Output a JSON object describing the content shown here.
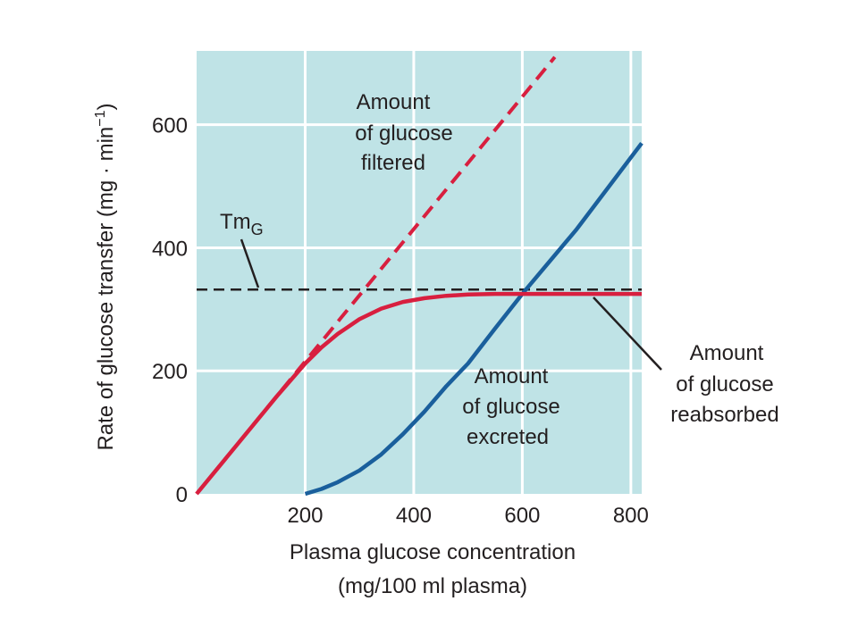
{
  "chart_data": {
    "type": "line",
    "title": "",
    "xlabel_line1": "Plasma glucose concentration",
    "xlabel_line2": "(mg/100 ml plasma)",
    "ylabel_text": "Rate of glucose transfer (mg · min",
    "ylabel_sup": "−1",
    "ylabel_close": ")",
    "xlim": [
      0,
      820
    ],
    "ylim": [
      0,
      720
    ],
    "grid": true,
    "x_ticks": [
      200,
      400,
      600,
      800
    ],
    "y_ticks": [
      0,
      200,
      400,
      600
    ],
    "colors": {
      "background": "#bfe3e6",
      "grid": "#ffffff",
      "filtered": "#d81f3f",
      "reabsorbed": "#d81f3f",
      "excreted": "#1a5f9c",
      "tm": "#231f20"
    },
    "series": [
      {
        "key": "filtered",
        "style": "dashed",
        "x": [
          0,
          660
        ],
        "y": [
          0,
          710
        ]
      },
      {
        "key": "reabsorbed",
        "style": "solid",
        "x": [
          0,
          150,
          200,
          230,
          260,
          300,
          340,
          380,
          420,
          460,
          500,
          550,
          600,
          700,
          820
        ],
        "y": [
          0,
          161,
          212,
          238,
          260,
          284,
          301,
          312,
          318,
          322,
          324,
          325,
          325,
          325,
          325
        ]
      },
      {
        "key": "excreted",
        "style": "solid",
        "x": [
          200,
          230,
          260,
          300,
          340,
          380,
          420,
          460,
          500,
          550,
          600,
          700,
          820
        ],
        "y": [
          0,
          8,
          19,
          38,
          64,
          97,
          134,
          175,
          212,
          269,
          325,
          430,
          570
        ]
      },
      {
        "key": "tm",
        "style": "dashed",
        "x": [
          0,
          820
        ],
        "y": [
          332,
          332
        ]
      }
    ],
    "annotations": {
      "filtered": [
        "Amount",
        "of glucose",
        "filtered"
      ],
      "excreted": [
        "Amount",
        "of glucose",
        "excreted"
      ],
      "reabsorbed": [
        "Amount",
        "of glucose",
        "reabsorbed"
      ],
      "tm_main": "Tm",
      "tm_sub": "G"
    }
  }
}
